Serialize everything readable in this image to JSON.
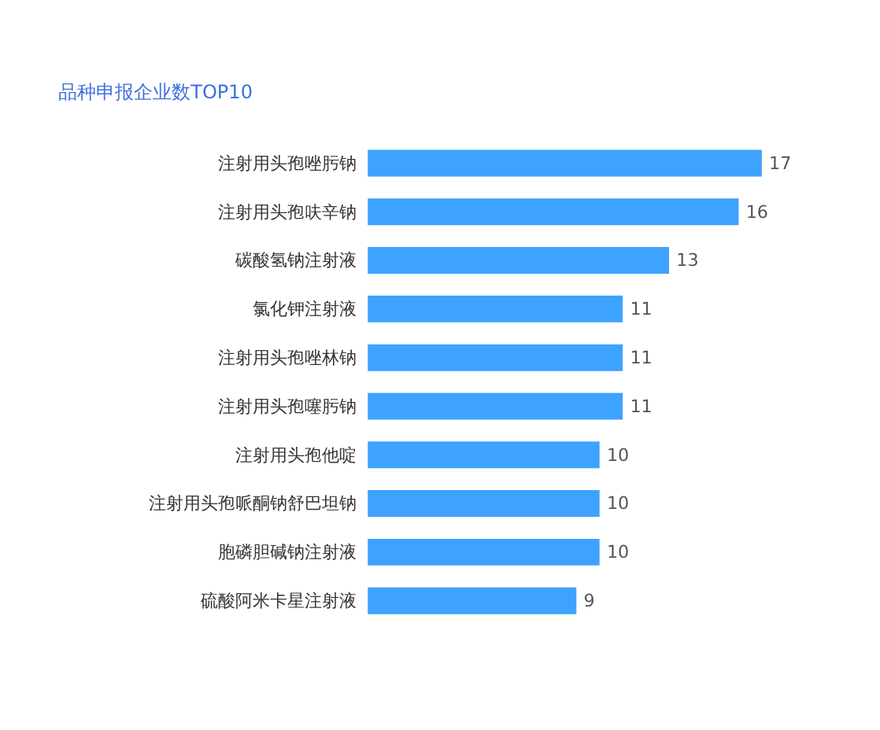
{
  "chart_data": {
    "type": "bar",
    "orientation": "horizontal",
    "title": "品种申报企业数TOP10",
    "categories": [
      "注射用头孢唑肟钠",
      "注射用头孢呋辛钠",
      "碳酸氢钠注射液",
      "氯化钾注射液",
      "注射用头孢唑林钠",
      "注射用头孢噻肟钠",
      "注射用头孢他啶",
      "注射用头孢哌酮钠舒巴坦钠",
      "胞磷胆碱钠注射液",
      "硫酸阿米卡星注射液"
    ],
    "values": [
      17,
      16,
      13,
      11,
      11,
      11,
      10,
      10,
      10,
      9
    ],
    "color": "#3ea2ff",
    "data_labels": true
  }
}
